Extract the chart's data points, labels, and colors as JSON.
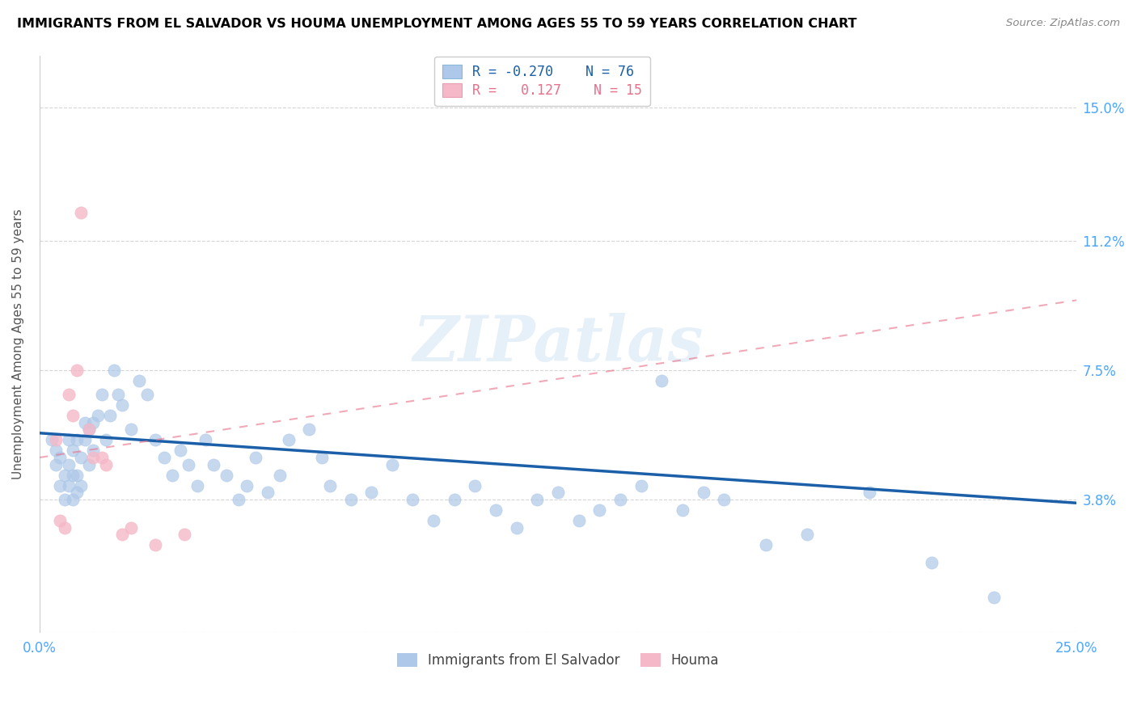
{
  "title": "IMMIGRANTS FROM EL SALVADOR VS HOUMA UNEMPLOYMENT AMONG AGES 55 TO 59 YEARS CORRELATION CHART",
  "source": "Source: ZipAtlas.com",
  "ylabel": "Unemployment Among Ages 55 to 59 years",
  "xlim": [
    0.0,
    0.25
  ],
  "ylim": [
    0.0,
    0.165
  ],
  "xticks": [
    0.0,
    0.05,
    0.1,
    0.15,
    0.2,
    0.25
  ],
  "xticklabels": [
    "0.0%",
    "",
    "",
    "",
    "",
    "25.0%"
  ],
  "ytick_positions": [
    0.0,
    0.038,
    0.075,
    0.112,
    0.15
  ],
  "ytick_labels": [
    "",
    "3.8%",
    "7.5%",
    "11.2%",
    "15.0%"
  ],
  "blue_color": "#adc8e8",
  "blue_line_color": "#1a5fa8",
  "pink_color": "#f5b8c8",
  "pink_line_color": "#e8708a",
  "legend_R1": "-0.270",
  "legend_N1": "76",
  "legend_R2": "0.127",
  "legend_N2": "15",
  "label1": "Immigrants from El Salvador",
  "label2": "Houma",
  "watermark": "ZIPatlas",
  "blue_scatter_x": [
    0.003,
    0.004,
    0.004,
    0.005,
    0.005,
    0.006,
    0.006,
    0.007,
    0.007,
    0.007,
    0.008,
    0.008,
    0.008,
    0.009,
    0.009,
    0.009,
    0.01,
    0.01,
    0.011,
    0.011,
    0.012,
    0.012,
    0.013,
    0.013,
    0.014,
    0.015,
    0.016,
    0.017,
    0.018,
    0.019,
    0.02,
    0.022,
    0.024,
    0.026,
    0.028,
    0.03,
    0.032,
    0.034,
    0.036,
    0.038,
    0.04,
    0.042,
    0.045,
    0.048,
    0.05,
    0.052,
    0.055,
    0.058,
    0.06,
    0.065,
    0.068,
    0.07,
    0.075,
    0.08,
    0.085,
    0.09,
    0.095,
    0.1,
    0.105,
    0.11,
    0.115,
    0.12,
    0.125,
    0.13,
    0.135,
    0.14,
    0.145,
    0.15,
    0.155,
    0.16,
    0.165,
    0.175,
    0.185,
    0.2,
    0.215,
    0.23
  ],
  "blue_scatter_y": [
    0.055,
    0.048,
    0.052,
    0.042,
    0.05,
    0.038,
    0.045,
    0.042,
    0.048,
    0.055,
    0.038,
    0.045,
    0.052,
    0.04,
    0.045,
    0.055,
    0.042,
    0.05,
    0.055,
    0.06,
    0.048,
    0.058,
    0.052,
    0.06,
    0.062,
    0.068,
    0.055,
    0.062,
    0.075,
    0.068,
    0.065,
    0.058,
    0.072,
    0.068,
    0.055,
    0.05,
    0.045,
    0.052,
    0.048,
    0.042,
    0.055,
    0.048,
    0.045,
    0.038,
    0.042,
    0.05,
    0.04,
    0.045,
    0.055,
    0.058,
    0.05,
    0.042,
    0.038,
    0.04,
    0.048,
    0.038,
    0.032,
    0.038,
    0.042,
    0.035,
    0.03,
    0.038,
    0.04,
    0.032,
    0.035,
    0.038,
    0.042,
    0.072,
    0.035,
    0.04,
    0.038,
    0.025,
    0.028,
    0.04,
    0.02,
    0.01
  ],
  "pink_scatter_x": [
    0.004,
    0.005,
    0.006,
    0.007,
    0.008,
    0.009,
    0.01,
    0.012,
    0.013,
    0.015,
    0.016,
    0.02,
    0.022,
    0.028,
    0.035
  ],
  "pink_scatter_y": [
    0.055,
    0.032,
    0.03,
    0.068,
    0.062,
    0.075,
    0.12,
    0.058,
    0.05,
    0.05,
    0.048,
    0.028,
    0.03,
    0.025,
    0.028
  ],
  "blue_trend_x": [
    0.0,
    0.25
  ],
  "blue_trend_y": [
    0.057,
    0.037
  ],
  "pink_trend_x": [
    0.0,
    0.25
  ],
  "pink_trend_y": [
    0.05,
    0.095
  ]
}
